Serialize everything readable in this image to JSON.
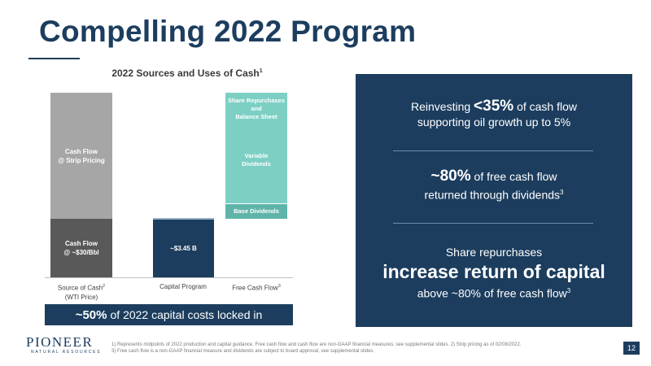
{
  "title": "Compelling 2022 Program",
  "chart": {
    "title": "2022 Sources and Uses of Cash",
    "title_sup": "1",
    "bars": {
      "cf_strip": "Cash Flow\n@ Strip Pricing",
      "cf_30": "Cash Flow\n@ ~$30/Bbl",
      "capex": "~$3.45 B",
      "share_rep": "Share Repurchases\nand\nBalance Sheet",
      "variable": "Variable\nDividends",
      "base": "Base Dividends"
    },
    "axis": {
      "source": "Source of Cash",
      "source_sup": "2",
      "source_sub": "(WTI Price)",
      "capex": "Capital Program",
      "fcf": "Free Cash Flow",
      "fcf_sup": "3"
    },
    "locked": {
      "pct": "~50%",
      "text": "of 2022 capital costs locked in"
    }
  },
  "panel": {
    "b1": {
      "pre": "Reinvesting",
      "big": "<35%",
      "post": "of cash flow",
      "line2": "supporting oil growth up to 5%"
    },
    "b2": {
      "big": "~80%",
      "post": "of free cash flow",
      "line2": "returned through dividends",
      "sup": "3"
    },
    "b3": {
      "line1": "Share repurchases",
      "huge": "increase return of capital",
      "line3": "above ~80% of free cash flow",
      "sup": "3"
    }
  },
  "logo": {
    "main": "PIONEER",
    "sub": "NATURAL RESOURCES"
  },
  "footnotes": {
    "line1": "1) Represents midpoints of 2022 production and capital guidance. Free cash flow and cash flow are non-GAAP financial measures; see supplemental slides.  2) Strip pricing as of 02/08/2022.",
    "line2": "3) Free cash flow is a non-GAAP financial measure and dividends are subject to board approval; see supplemental slides."
  },
  "page_number": "12",
  "colors": {
    "navy": "#1c3d5e",
    "grey_light": "#a6a6a6",
    "grey_dark": "#595959",
    "teal": "#7dcfc4",
    "teal_dark": "#5fb4aa"
  }
}
